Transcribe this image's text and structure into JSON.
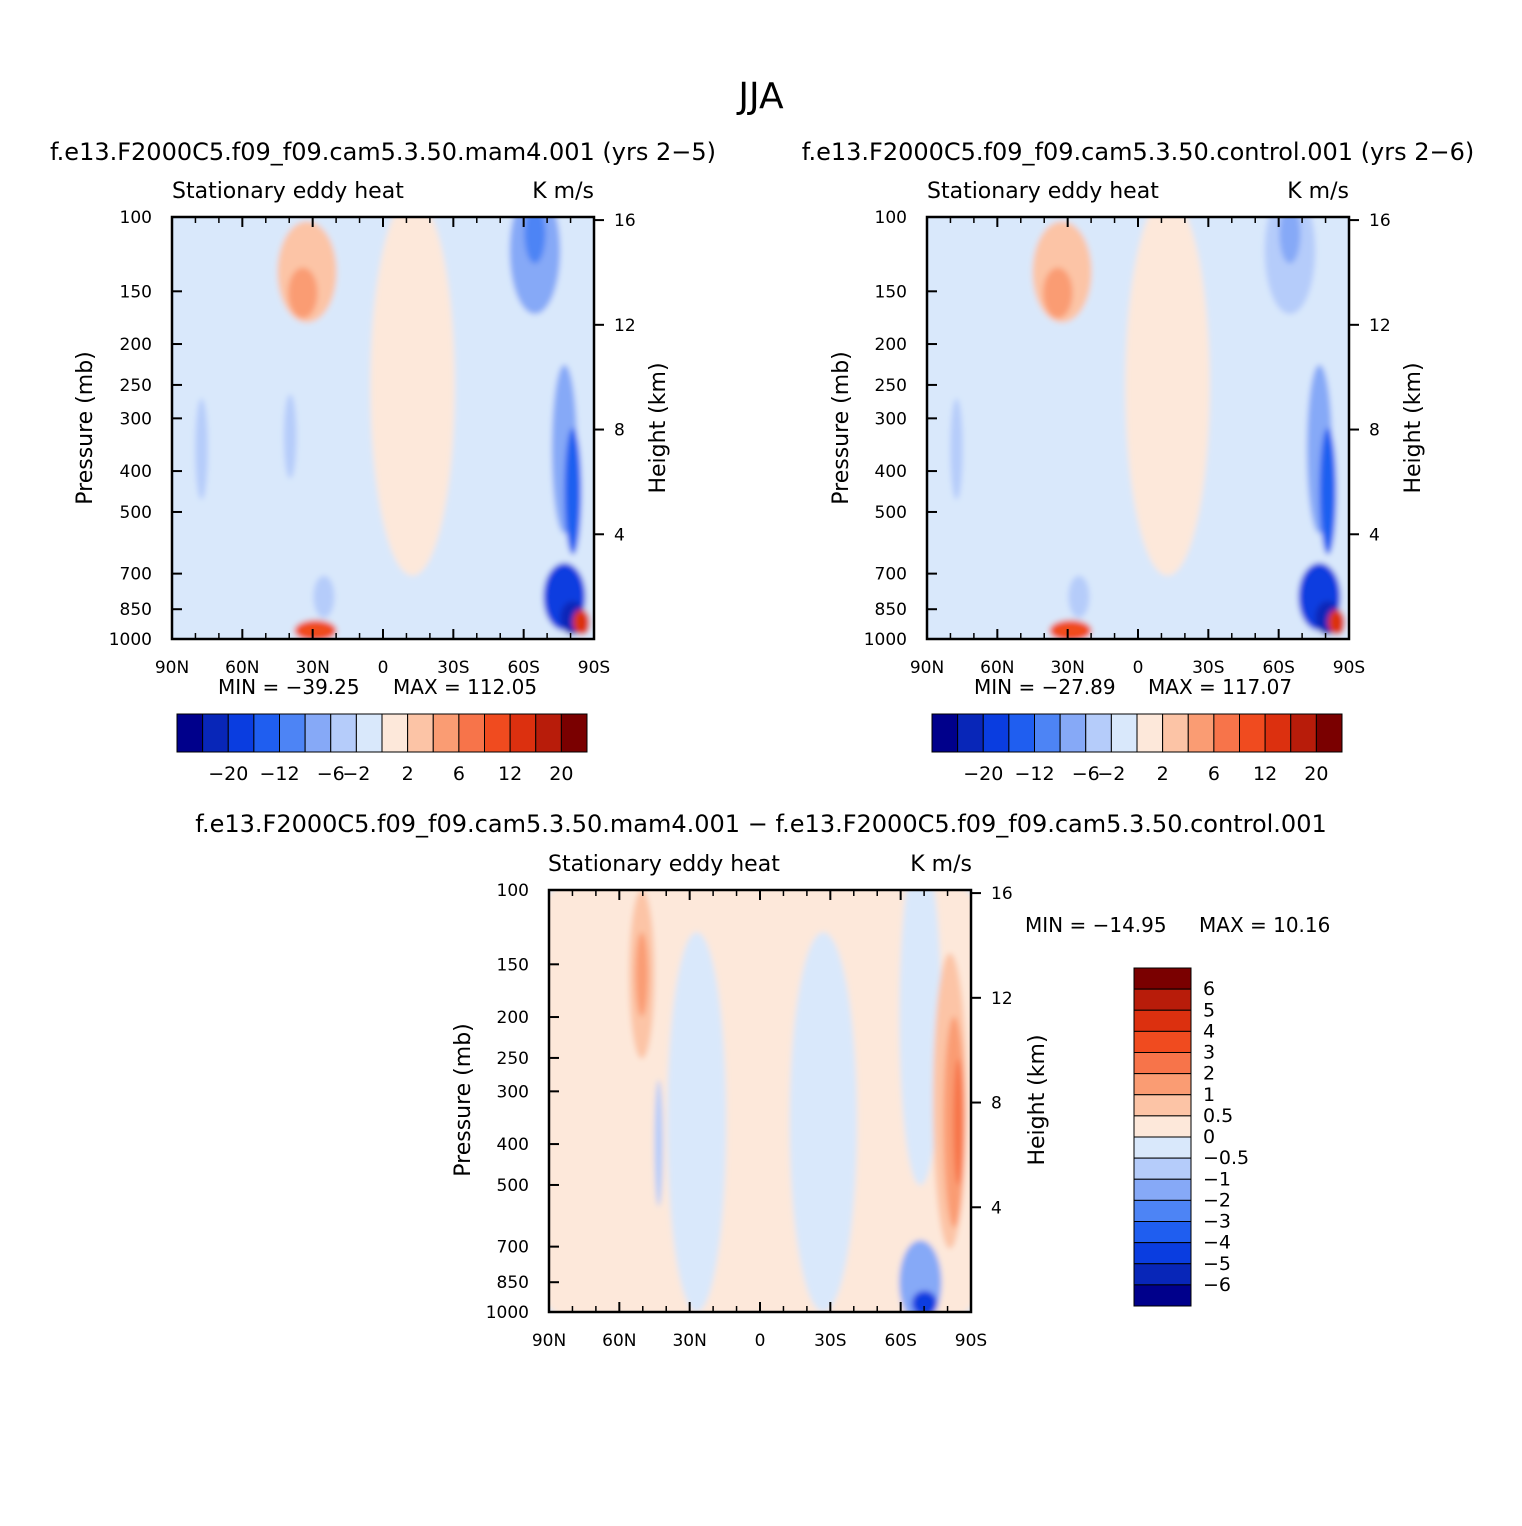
{
  "page": {
    "title": "JJA"
  },
  "colors": {
    "palette14": [
      "#00008b",
      "#0826b8",
      "#0a3de0",
      "#1f5ef0",
      "#4d84f5",
      "#86a9f7",
      "#b5ccfa",
      "#d9e8fb",
      "#fde8da",
      "#fcc4a6",
      "#fa9c73",
      "#f7744a",
      "#f04b1f",
      "#dc300f",
      "#b81c0a",
      "#7a0000"
    ],
    "axis": "#000000"
  },
  "chart_data": [
    {
      "id": "mam4",
      "type": "heatmap",
      "header": "f.e13.F2000C5.f09_f09.cam5.3.50.mam4.001 (yrs 2−5)",
      "left_title": "Stationary eddy heat",
      "right_title": "K m/s",
      "ylabel": "Pressure (mb)",
      "ylabel2": "Height (km)",
      "pressure_ticks": [
        "100",
        "150",
        "200",
        "250",
        "300",
        "400",
        "500",
        "700",
        "850",
        "1000"
      ],
      "height_ticks": [
        "16",
        "12",
        "8",
        "4"
      ],
      "x_ticks": [
        "90N",
        "60N",
        "30N",
        "0",
        "30S",
        "60S",
        "90S"
      ],
      "min_label": "MIN = −39.25",
      "max_label": "MAX = 112.05",
      "min": -39.25,
      "max": 112.05,
      "colorbar_labels": [
        "−20",
        "−12",
        "−6",
        "−2",
        "2",
        "6",
        "12",
        "20"
      ]
    },
    {
      "id": "control",
      "type": "heatmap",
      "header": "f.e13.F2000C5.f09_f09.cam5.3.50.control.001 (yrs 2−6)",
      "left_title": "Stationary eddy heat",
      "right_title": "K m/s",
      "ylabel": "Pressure (mb)",
      "ylabel2": "Height (km)",
      "pressure_ticks": [
        "100",
        "150",
        "200",
        "250",
        "300",
        "400",
        "500",
        "700",
        "850",
        "1000"
      ],
      "height_ticks": [
        "16",
        "12",
        "8",
        "4"
      ],
      "x_ticks": [
        "90N",
        "60N",
        "30N",
        "0",
        "30S",
        "60S",
        "90S"
      ],
      "min_label": "MIN = −27.89",
      "max_label": "MAX = 117.07",
      "min": -27.89,
      "max": 117.07,
      "colorbar_labels": [
        "−20",
        "−12",
        "−6",
        "−2",
        "2",
        "6",
        "12",
        "20"
      ]
    },
    {
      "id": "diff",
      "type": "heatmap",
      "header": "f.e13.F2000C5.f09_f09.cam5.3.50.mam4.001 − f.e13.F2000C5.f09_f09.cam5.3.50.control.001",
      "left_title": "Stationary eddy heat",
      "right_title": "K m/s",
      "ylabel": "Pressure (mb)",
      "ylabel2": "Height (km)",
      "pressure_ticks": [
        "100",
        "150",
        "200",
        "250",
        "300",
        "400",
        "500",
        "700",
        "850",
        "1000"
      ],
      "height_ticks": [
        "16",
        "12",
        "8",
        "4"
      ],
      "x_ticks": [
        "90N",
        "60N",
        "30N",
        "0",
        "30S",
        "60S",
        "90S"
      ],
      "min_label": "MIN = −14.95",
      "max_label": "MAX =   10.16",
      "min": -14.95,
      "max": 10.16,
      "colorbar_labels": [
        "6",
        "5",
        "4",
        "3",
        "2",
        "1",
        "0.5",
        "0",
        "−0.5",
        "−1",
        "−2",
        "−3",
        "−4",
        "−5",
        "−6"
      ]
    }
  ]
}
